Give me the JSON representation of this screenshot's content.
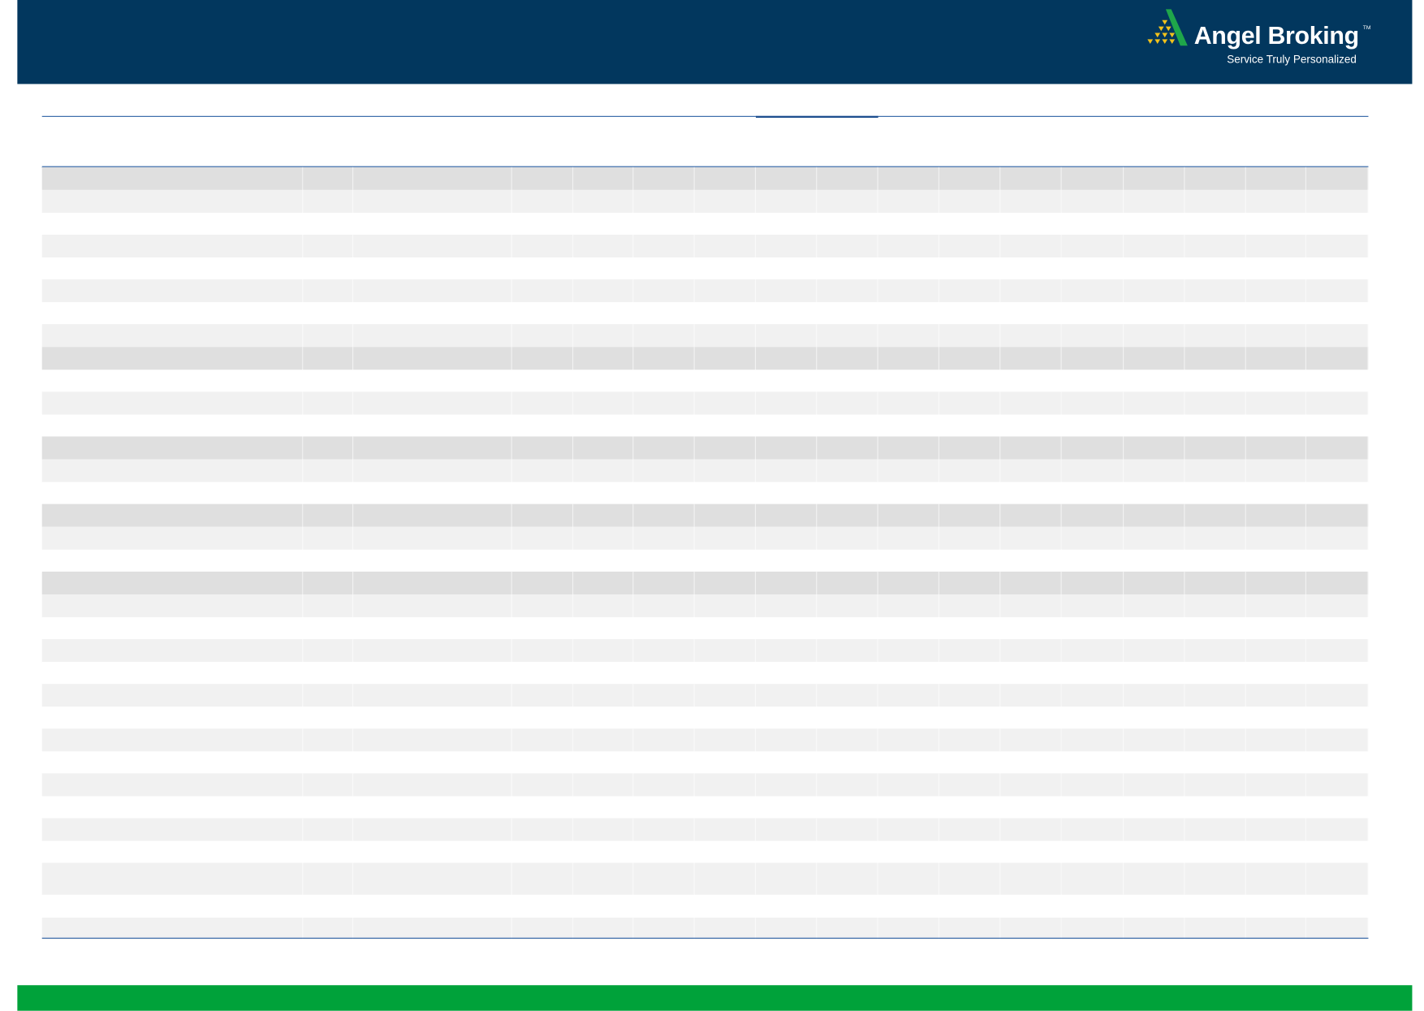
{
  "brand": {
    "name": "Angel Broking",
    "trademark": "TM",
    "tagline": "Service Truly Personalized",
    "colors": {
      "header": "#02375e",
      "footer": "#00a23a",
      "logo_green": "#1fa64a",
      "logo_gold": "#f2c21b",
      "rule": "#2e62a6"
    }
  },
  "table": {
    "column_count": 17,
    "rows": [
      "section",
      "alt",
      "plain",
      "alt",
      "plain",
      "alt",
      "plain",
      "alt",
      "section",
      "plain",
      "alt",
      "plain",
      "section",
      "alt",
      "plain",
      "section",
      "alt",
      "plain",
      "section",
      "alt",
      "plain",
      "alt",
      "plain",
      "alt",
      "plain",
      "alt",
      "plain",
      "alt",
      "plain",
      "alt",
      "plain",
      "alt-tall",
      "plain",
      "alt"
    ]
  }
}
